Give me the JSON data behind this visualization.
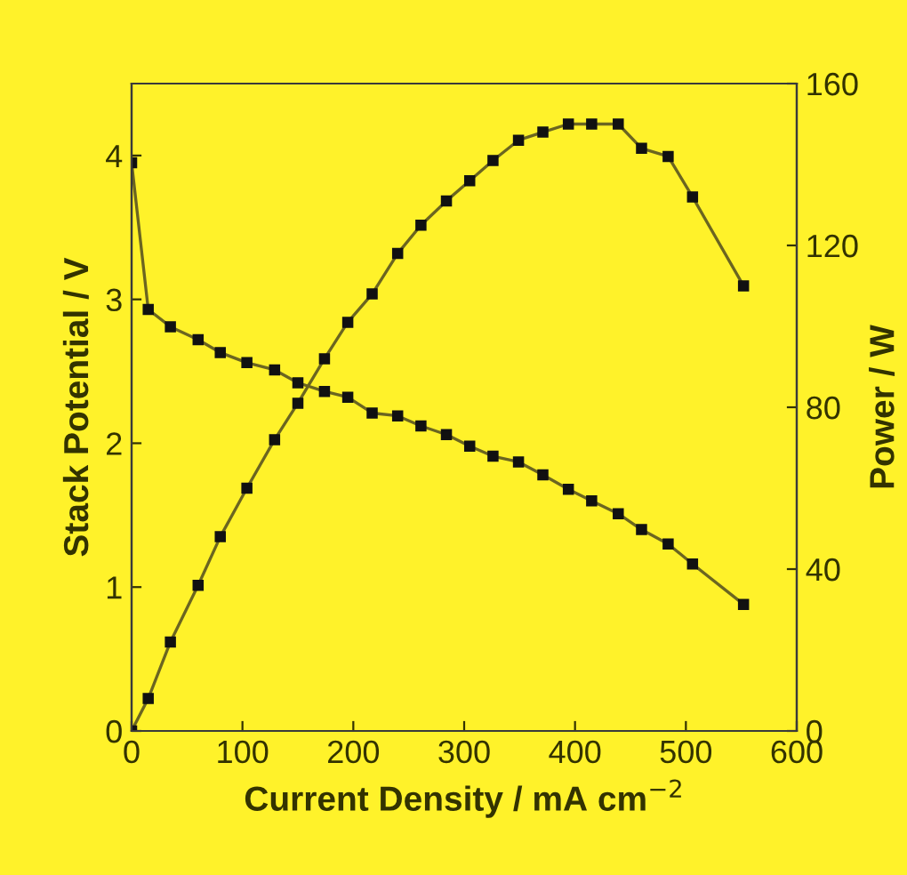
{
  "chart_data": {
    "type": "line",
    "xlabel": "Current Density / mA cm$^{−2}$",
    "ylabel": "Stack Potential / V",
    "y2label": "Power / W",
    "x": [
      0,
      15,
      35,
      60,
      80,
      104,
      129,
      150,
      174,
      195,
      217,
      240,
      261,
      284,
      305,
      326,
      349,
      371,
      394,
      415,
      439,
      460,
      484,
      506,
      552
    ],
    "series": [
      {
        "color": "#6b6520",
        "values": [
          3.95,
          2.93,
          2.81,
          2.72,
          2.63,
          2.56,
          2.51,
          2.42,
          2.36,
          2.32,
          2.21,
          2.19,
          2.12,
          2.06,
          1.98,
          1.91,
          1.87,
          1.78,
          1.68,
          1.6,
          1.51,
          1.4,
          1.3,
          1.16,
          0.88
        ]
      },
      {
        "color": "#6b6520",
        "axis": "y2",
        "values": [
          0,
          8,
          22,
          36,
          48,
          60,
          72,
          81,
          92,
          101,
          108,
          118,
          125,
          131,
          136,
          141,
          146,
          148,
          150,
          150,
          150,
          144,
          142,
          132,
          110
        ]
      }
    ],
    "xlim": [
      0,
      600
    ],
    "xticks": [
      0,
      100,
      200,
      300,
      400,
      500,
      600
    ],
    "ylim": [
      0,
      4.5
    ],
    "yticks": [
      0,
      1,
      2,
      3,
      4
    ],
    "y2lim": [
      0,
      160
    ],
    "y2ticks": [
      0,
      40,
      80,
      120,
      160
    ],
    "marker": "square",
    "line_style": "solid",
    "grid": false,
    "legend": false
  }
}
